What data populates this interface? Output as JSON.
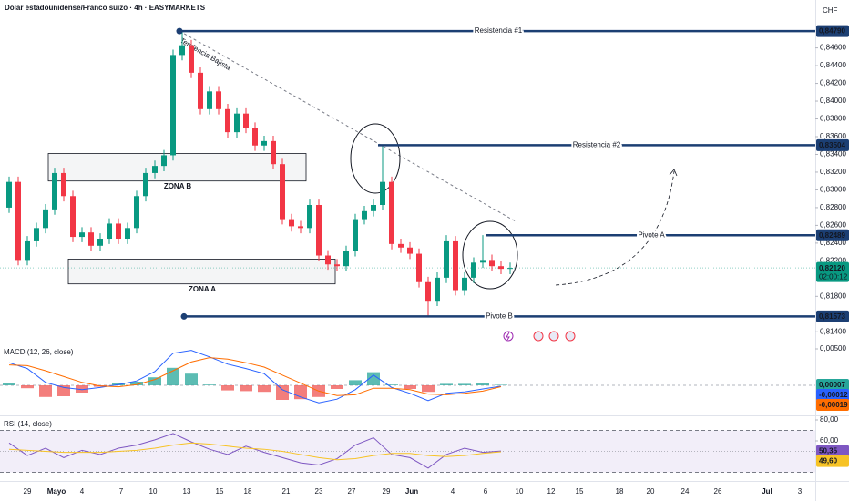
{
  "chart_data": [
    {
      "type": "candlestick",
      "title": "Dólar estadounidense/Franco suizo · 4h · EASYMARKETS",
      "currency": "CHF",
      "open": [
        0.828,
        0.8309,
        0.8221,
        0.8242,
        0.8257,
        0.8278,
        0.8319,
        0.8293,
        0.8247,
        0.8252,
        0.8237,
        0.8245,
        0.8262,
        0.8245,
        0.8257,
        0.8293,
        0.8319,
        0.8327,
        0.8339,
        0.8452,
        0.8463,
        0.8432,
        0.8391,
        0.8411,
        0.8391,
        0.8365,
        0.8386,
        0.837,
        0.835,
        0.8355,
        0.8329,
        0.8267,
        0.8259,
        0.8257,
        0.8283,
        0.8226,
        0.8216,
        0.8214,
        0.8231,
        0.8267,
        0.8276,
        0.8283,
        0.8309,
        0.8239,
        0.8235,
        0.8228,
        0.8196,
        0.8175,
        0.8201,
        0.8242,
        0.8187,
        0.8201,
        0.8218,
        0.8221,
        0.8214,
        0.8211
      ],
      "high": [
        0.8315,
        0.8315,
        0.8248,
        0.8263,
        0.8284,
        0.8325,
        0.8325,
        0.8299,
        0.8258,
        0.8258,
        0.8251,
        0.8268,
        0.8268,
        0.8263,
        0.8299,
        0.8325,
        0.8333,
        0.8345,
        0.8458,
        0.8479,
        0.8469,
        0.8438,
        0.8417,
        0.8417,
        0.8397,
        0.8392,
        0.8392,
        0.8376,
        0.8361,
        0.8361,
        0.8335,
        0.8273,
        0.8265,
        0.8289,
        0.8289,
        0.8232,
        0.8222,
        0.8237,
        0.8273,
        0.8282,
        0.8289,
        0.835,
        0.8315,
        0.8245,
        0.8241,
        0.8234,
        0.8202,
        0.8207,
        0.8249,
        0.8248,
        0.8207,
        0.8224,
        0.8249,
        0.8227,
        0.822,
        0.8218
      ],
      "low": [
        0.8274,
        0.8215,
        0.8215,
        0.8236,
        0.8251,
        0.8272,
        0.8287,
        0.8241,
        0.8241,
        0.8231,
        0.8231,
        0.8239,
        0.8239,
        0.8239,
        0.8251,
        0.8287,
        0.8313,
        0.8321,
        0.8333,
        0.8446,
        0.8426,
        0.8385,
        0.8385,
        0.8385,
        0.8359,
        0.8359,
        0.8364,
        0.8344,
        0.8344,
        0.8323,
        0.8261,
        0.8253,
        0.8251,
        0.8251,
        0.822,
        0.821,
        0.8208,
        0.8208,
        0.8225,
        0.8261,
        0.827,
        0.8277,
        0.8233,
        0.8229,
        0.8222,
        0.819,
        0.8157,
        0.8169,
        0.8195,
        0.8181,
        0.8181,
        0.8195,
        0.8212,
        0.8208,
        0.8205,
        0.8205
      ],
      "close": [
        0.8309,
        0.8221,
        0.8242,
        0.8257,
        0.8278,
        0.8319,
        0.8293,
        0.8247,
        0.8252,
        0.8237,
        0.8245,
        0.8262,
        0.8245,
        0.8257,
        0.8293,
        0.8319,
        0.8327,
        0.8339,
        0.8452,
        0.8463,
        0.8432,
        0.8391,
        0.8411,
        0.8391,
        0.8365,
        0.8386,
        0.837,
        0.835,
        0.8355,
        0.8329,
        0.8267,
        0.8259,
        0.8257,
        0.8283,
        0.8226,
        0.8216,
        0.8214,
        0.8231,
        0.8267,
        0.8276,
        0.8283,
        0.8309,
        0.8239,
        0.8235,
        0.8228,
        0.8196,
        0.8175,
        0.8201,
        0.8242,
        0.8187,
        0.8201,
        0.8218,
        0.8221,
        0.8214,
        0.8211,
        0.8212
      ],
      "up_color": "#089981",
      "down_color": "#f23645",
      "ylim": [
        0.8129,
        0.8514
      ],
      "yticks": [
        {
          "value": 0.846,
          "label": "0,84600"
        },
        {
          "value": 0.844,
          "label": "0,84400"
        },
        {
          "value": 0.842,
          "label": "0,84200"
        },
        {
          "value": 0.84,
          "label": "0,84000"
        },
        {
          "value": 0.838,
          "label": "0,83800"
        },
        {
          "value": 0.836,
          "label": "0,83600"
        },
        {
          "value": 0.834,
          "label": "0,83400"
        },
        {
          "value": 0.832,
          "label": "0,83200"
        },
        {
          "value": 0.83,
          "label": "0,83000"
        },
        {
          "value": 0.828,
          "label": "0,82800"
        },
        {
          "value": 0.826,
          "label": "0,82600"
        },
        {
          "value": 0.824,
          "label": "0,82400"
        },
        {
          "value": 0.822,
          "label": "0,82200"
        },
        {
          "value": 0.818,
          "label": "0,81800"
        },
        {
          "value": 0.814,
          "label": "0,81400"
        }
      ],
      "levels": [
        {
          "name": "Resistencia #1",
          "value": 0.8479,
          "label": "0,84790"
        },
        {
          "name": "Resistencia #2",
          "value": 0.83504,
          "label": "0,83504"
        },
        {
          "name": "Pivote A",
          "value": 0.82489,
          "label": "0,82489"
        },
        {
          "name": "Pivote B",
          "value": 0.81573,
          "label": "0,81573"
        }
      ],
      "level_color": "#1c3f73",
      "current_price": {
        "value": 0.8212,
        "label": "0,82120",
        "countdown": "02:00:12",
        "color": "#089981"
      },
      "zones": [
        {
          "name": "ZONA B",
          "range": [
            0.8341,
            0.831
          ]
        },
        {
          "name": "ZONA A",
          "range": [
            0.8222,
            0.8194
          ]
        }
      ],
      "trendline_label": "Tendencia Bajista",
      "x_axis_labels": [
        "29",
        "Mayo",
        "4",
        "7",
        "10",
        "13",
        "15",
        "18",
        "21",
        "23",
        "27",
        "29",
        "Jun",
        "4",
        "6",
        "10",
        "12",
        "15",
        "18",
        "20",
        "24",
        "26",
        "Jul",
        "3"
      ]
    },
    {
      "type": "macd",
      "title": "MACD (12, 26, close)",
      "ylim": [
        -0.004,
        0.005625
      ],
      "yticks": [
        {
          "value": 0.005,
          "label": "0,00500"
        }
      ],
      "series": [
        {
          "style": "histogram",
          "up_color": "#26a69a",
          "down_color": "#ef5350",
          "values": [
            0.0003,
            -0.0004,
            -0.0016,
            -0.0015,
            -0.001,
            -0.0002,
            0.0003,
            0.0005,
            0.0011,
            0.0024,
            0.0016,
            0.0001,
            -0.0007,
            -0.0008,
            -0.0009,
            -0.002,
            -0.0019,
            -0.0016,
            -0.0005,
            0.0007,
            0.0018,
            0.0001,
            -0.0005,
            -0.0009,
            0.0002,
            0.0002,
            0.0003,
            7e-05
          ],
          "last_value_label": "0,00007",
          "color": "#26a69a"
        },
        {
          "style": "line",
          "color": "#2962ff",
          "values": [
            0.0031,
            0.0023,
            0.0004,
            -0.0003,
            -0.0006,
            -0.0003,
            0.0001,
            0.0006,
            0.0019,
            0.0044,
            0.0048,
            0.0039,
            0.0029,
            0.0023,
            0.0016,
            -0.0006,
            -0.0016,
            -0.0024,
            -0.0019,
            -0.0006,
            0.0014,
            -0.0003,
            -0.0011,
            -0.0021,
            -0.0011,
            -0.0009,
            -0.0005,
            -0.00012
          ],
          "last_value_label": "-0,00012"
        },
        {
          "style": "line",
          "color": "#ff6d00",
          "values": [
            0.0028,
            0.0027,
            0.002,
            0.0012,
            0.0004,
            -0.0001,
            -0.0002,
            0.0001,
            0.0008,
            0.002,
            0.0032,
            0.0038,
            0.0036,
            0.0031,
            0.0025,
            0.0014,
            0.0003,
            -0.0008,
            -0.0014,
            -0.0013,
            -0.0004,
            -0.0004,
            -0.0006,
            -0.0012,
            -0.0013,
            -0.0011,
            -0.0008,
            -0.00019
          ],
          "last_value_label": "-0,00019"
        }
      ]
    },
    {
      "type": "rsi",
      "title": "RSI (14, close)",
      "ylim": [
        22.6,
        82.6
      ],
      "yticks": [
        {
          "value": 80,
          "label": "80,00"
        },
        {
          "value": 60,
          "label": "60,00"
        }
      ],
      "band": [
        30,
        70
      ],
      "midline": 50,
      "band_color": "#7e57c2",
      "series": [
        {
          "style": "line",
          "color": "#7e57c2",
          "values": [
            58,
            46,
            53,
            44,
            51,
            47,
            53,
            56,
            61,
            67,
            59,
            52,
            47,
            55,
            49,
            44,
            39,
            37,
            43,
            56,
            63,
            47,
            44,
            34,
            47,
            53,
            49,
            50.35
          ],
          "last_value_label": "50,35"
        },
        {
          "style": "line",
          "color": "#f7c325",
          "values": [
            52,
            51,
            50,
            49,
            49,
            49,
            50,
            51,
            53,
            56,
            58,
            57,
            55,
            53,
            52,
            50,
            47,
            44,
            42,
            43,
            46,
            48,
            48,
            46,
            45,
            46,
            48,
            49.6
          ],
          "last_value_label": "49,60"
        }
      ]
    }
  ]
}
